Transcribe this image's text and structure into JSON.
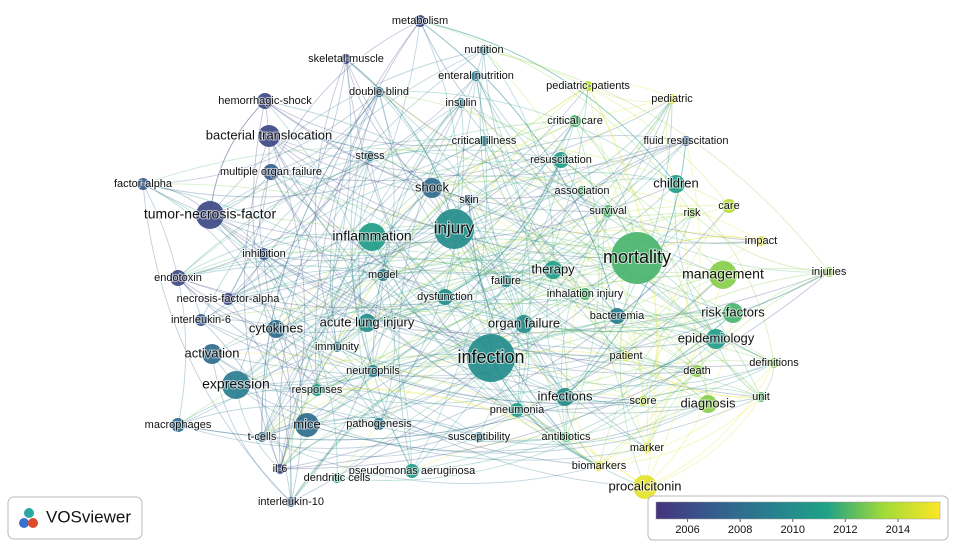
{
  "logo": "VOSviewer",
  "color_scale": {
    "min": 2004.8,
    "max": 2015.6,
    "ticks": [
      2006,
      2008,
      2010,
      2012,
      2014
    ]
  },
  "nodes": [
    {
      "label": "metabolism",
      "year": 2006,
      "weight": 6
    },
    {
      "label": "nutrition",
      "year": 2009,
      "weight": 5
    },
    {
      "label": "skeletal-muscle",
      "year": 2006,
      "weight": 5
    },
    {
      "label": "enteral nutrition",
      "year": 2009,
      "weight": 5
    },
    {
      "label": "pediatric-patients",
      "year": 2014,
      "weight": 5
    },
    {
      "label": "double-blind",
      "year": 2008,
      "weight": 5
    },
    {
      "label": "hemorrhagic-shock",
      "year": 2006,
      "weight": 8
    },
    {
      "label": "insulin",
      "year": 2009,
      "weight": 5
    },
    {
      "label": "pediatric",
      "year": 2015,
      "weight": 5
    },
    {
      "label": "critical care",
      "year": 2012,
      "weight": 6
    },
    {
      "label": "bacterial translocation",
      "year": 2006,
      "weight": 11
    },
    {
      "label": "critical illness",
      "year": 2009,
      "weight": 5
    },
    {
      "label": "fluid resuscitation",
      "year": 2007,
      "weight": 5
    },
    {
      "label": "stress",
      "year": 2009,
      "weight": 5
    },
    {
      "label": "resuscitation",
      "year": 2011,
      "weight": 8
    },
    {
      "label": "multiple organ failure",
      "year": 2007,
      "weight": 8
    },
    {
      "label": "factor-alpha",
      "year": 2007,
      "weight": 6
    },
    {
      "label": "shock",
      "year": 2008,
      "weight": 10
    },
    {
      "label": "skin",
      "year": 2008,
      "weight": 5
    },
    {
      "label": "children",
      "year": 2011,
      "weight": 9
    },
    {
      "label": "association",
      "year": 2012,
      "weight": 5
    },
    {
      "label": "survival",
      "year": 2012,
      "weight": 6
    },
    {
      "label": "risk",
      "year": 2013,
      "weight": 5
    },
    {
      "label": "care",
      "year": 2014,
      "weight": 7
    },
    {
      "label": "tumor-necrosis-factor",
      "year": 2006,
      "weight": 14
    },
    {
      "label": "injury",
      "year": 2010,
      "weight": 20
    },
    {
      "label": "inflammation",
      "year": 2011,
      "weight": 14
    },
    {
      "label": "impact",
      "year": 2015,
      "weight": 5
    },
    {
      "label": "inhibition",
      "year": 2007,
      "weight": 6
    },
    {
      "label": "mortality",
      "year": 2012,
      "weight": 26
    },
    {
      "label": "endotoxin",
      "year": 2006,
      "weight": 8
    },
    {
      "label": "model",
      "year": 2009,
      "weight": 6
    },
    {
      "label": "therapy",
      "year": 2011,
      "weight": 9
    },
    {
      "label": "failure",
      "year": 2010,
      "weight": 6
    },
    {
      "label": "management",
      "year": 2013,
      "weight": 14
    },
    {
      "label": "injuries",
      "year": 2013,
      "weight": 5
    },
    {
      "label": "necrosis-factor-alpha",
      "year": 2006,
      "weight": 6
    },
    {
      "label": "dysfunction",
      "year": 2010,
      "weight": 8
    },
    {
      "label": "inhalation injury",
      "year": 2012,
      "weight": 6
    },
    {
      "label": "interleukin-6",
      "year": 2007,
      "weight": 6
    },
    {
      "label": "cytokines",
      "year": 2008,
      "weight": 9
    },
    {
      "label": "acute lung injury",
      "year": 2010,
      "weight": 9
    },
    {
      "label": "organ failure",
      "year": 2010,
      "weight": 9
    },
    {
      "label": "bacteremia",
      "year": 2009,
      "weight": 8
    },
    {
      "label": "risk-factors",
      "year": 2012,
      "weight": 10
    },
    {
      "label": "epidemiology",
      "year": 2011,
      "weight": 10
    },
    {
      "label": "immunity",
      "year": 2009,
      "weight": 5
    },
    {
      "label": "activation",
      "year": 2008,
      "weight": 10
    },
    {
      "label": "infection",
      "year": 2010,
      "weight": 24
    },
    {
      "label": "patient",
      "year": 2015,
      "weight": 5
    },
    {
      "label": "neutrophils",
      "year": 2009,
      "weight": 6
    },
    {
      "label": "definitions",
      "year": 2013,
      "weight": 5
    },
    {
      "label": "death",
      "year": 2013,
      "weight": 6
    },
    {
      "label": "responses",
      "year": 2011,
      "weight": 6
    },
    {
      "label": "expression",
      "year": 2009,
      "weight": 14
    },
    {
      "label": "infections",
      "year": 2010,
      "weight": 9
    },
    {
      "label": "score",
      "year": 2014,
      "weight": 5
    },
    {
      "label": "diagnosis",
      "year": 2013,
      "weight": 9
    },
    {
      "label": "unit",
      "year": 2012,
      "weight": 5
    },
    {
      "label": "pneumonia",
      "year": 2011,
      "weight": 7
    },
    {
      "label": "macrophages",
      "year": 2008,
      "weight": 7
    },
    {
      "label": "mice",
      "year": 2008,
      "weight": 12
    },
    {
      "label": "pathogenesis",
      "year": 2009,
      "weight": 6
    },
    {
      "label": "susceptibility",
      "year": 2009,
      "weight": 5
    },
    {
      "label": "antibiotics",
      "year": 2012,
      "weight": 5
    },
    {
      "label": "marker",
      "year": 2015,
      "weight": 5
    },
    {
      "label": "t-cells",
      "year": 2008,
      "weight": 5
    },
    {
      "label": "il-6",
      "year": 2006,
      "weight": 5
    },
    {
      "label": "pseudomonas aeruginosa",
      "year": 2011,
      "weight": 7
    },
    {
      "label": "biomarkers",
      "year": 2015,
      "weight": 5
    },
    {
      "label": "dendritic cells",
      "year": 2011,
      "weight": 5
    },
    {
      "label": "procalcitonin",
      "year": 2015,
      "weight": 12
    },
    {
      "label": "interleukin-10",
      "year": 2007,
      "weight": 5
    }
  ]
}
